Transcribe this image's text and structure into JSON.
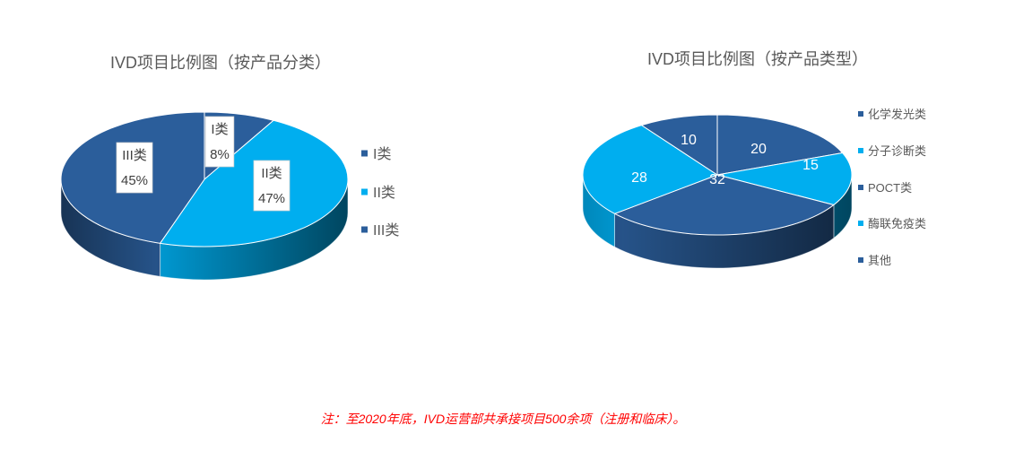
{
  "chart_data": [
    {
      "type": "pie",
      "three_d": true,
      "title": "IVD项目比例图（按产品分类）",
      "categories": [
        "I类",
        "II类",
        "III类"
      ],
      "values": [
        8,
        47,
        45
      ],
      "data_labels": [
        [
          "I类",
          "8%"
        ],
        [
          "II类",
          "47%"
        ],
        [
          "III类",
          "45%"
        ]
      ],
      "colors": [
        "#2B5E9B",
        "#00AEEF",
        "#2B5E9B"
      ],
      "legend": "right"
    },
    {
      "type": "pie",
      "three_d": true,
      "title": "IVD项目比例图（按产品类型）",
      "categories": [
        "化学发光类",
        "分子诊断类",
        "POCT类",
        "酶联免疫类",
        "其他"
      ],
      "values": [
        20,
        15,
        32,
        28,
        10
      ],
      "data_labels": [
        "20",
        "15",
        "32",
        "28",
        "10"
      ],
      "colors": [
        "#2B5E9B",
        "#00AEEF",
        "#2B5E9B",
        "#00AEEF",
        "#2B5E9B"
      ],
      "legend": "right"
    }
  ],
  "footnote": "注：至2020年底，IVD运营部共承接项目500余项（注册和临床）。"
}
